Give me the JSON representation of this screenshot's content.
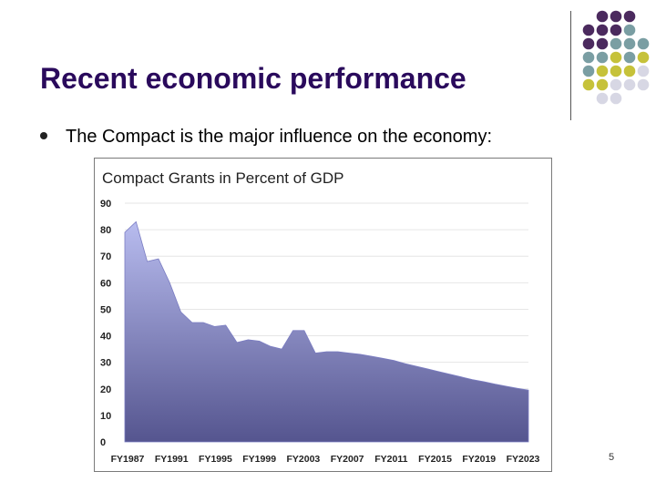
{
  "slide": {
    "title": "Recent economic performance",
    "bullet": "The Compact is the major influence on the economy:",
    "page_number": "5"
  },
  "decor_colors": [
    "#4b2a5e",
    "#7a9ea3",
    "#c6c23a",
    "#d7d7e4"
  ],
  "chart_data": {
    "type": "area",
    "title": "Compact Grants in Percent of GDP",
    "xlabel": "",
    "ylabel": "",
    "ylim": [
      0,
      90
    ],
    "yticks": [
      0,
      10,
      20,
      30,
      40,
      50,
      60,
      70,
      80,
      90
    ],
    "xlim": [
      1987,
      2023
    ],
    "xticks": [
      "FY1987",
      "FY1991",
      "FY1995",
      "FY1999",
      "FY2003",
      "FY2007",
      "FY2011",
      "FY2015",
      "FY2019",
      "FY2023"
    ],
    "grid": true,
    "fill_top": "#b8bcef",
    "fill_bottom": "#55558f",
    "series": [
      {
        "x": [
          1987,
          1988,
          1989,
          1990,
          1991,
          1992,
          1993,
          1994,
          1995,
          1996,
          1997,
          1998,
          1999,
          2000,
          2001,
          2002,
          2003,
          2004,
          2005,
          2006,
          2007,
          2008,
          2009,
          2010,
          2011,
          2012,
          2013,
          2014,
          2015,
          2016,
          2017,
          2018,
          2019,
          2020,
          2021,
          2022,
          2023
        ],
        "values": [
          79,
          83,
          68,
          69,
          60,
          49,
          45,
          45,
          43.5,
          44,
          37.5,
          38.5,
          38,
          36,
          35,
          42,
          42,
          33.5,
          34,
          34,
          33.5,
          33,
          32.3,
          31.5,
          30.7,
          29.5,
          28.5,
          27.5,
          26.5,
          25.5,
          24.5,
          23.5,
          22.7,
          21.8,
          21,
          20.2,
          19.5
        ]
      }
    ]
  }
}
